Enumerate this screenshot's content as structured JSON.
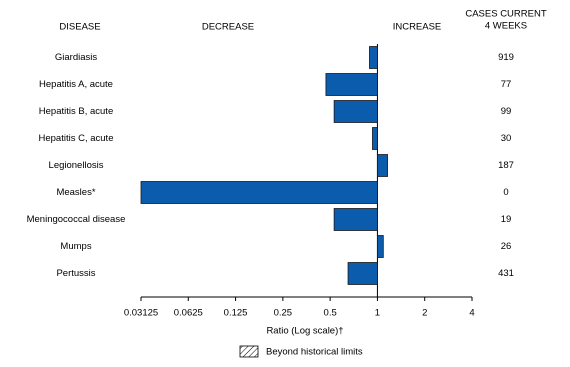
{
  "chart_data": {
    "type": "bar",
    "orientation": "horizontal",
    "headers": {
      "disease": "DISEASE",
      "decrease": "DECREASE",
      "increase": "INCREASE",
      "cases": [
        "CASES CURRENT",
        "4 WEEKS"
      ]
    },
    "categories": [
      "Giardiasis",
      "Hepatitis A, acute",
      "Hepatitis B, acute",
      "Hepatitis C, acute",
      "Legionellosis",
      "Measles*",
      "Meningococcal disease",
      "Mumps",
      "Pertussis"
    ],
    "values": [
      0.89,
      0.47,
      0.53,
      0.93,
      1.16,
      0.03125,
      0.53,
      1.09,
      0.65
    ],
    "cases": [
      919,
      77,
      99,
      30,
      187,
      0,
      19,
      26,
      431
    ],
    "color": "#0b5cad",
    "x_scale": "log",
    "xlim": [
      0.03125,
      4
    ],
    "xticks": [
      0.03125,
      0.0625,
      0.125,
      0.25,
      0.5,
      1,
      2,
      4
    ],
    "baseline": 1,
    "x_label": "Ratio (Log scale)†",
    "legend": "Beyond historical limits"
  }
}
